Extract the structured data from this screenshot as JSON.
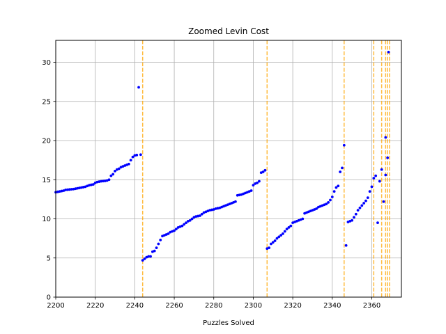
{
  "chart_data": {
    "type": "scatter",
    "title": "Zoomed Levin Cost",
    "xlabel": "Puzzles Solved",
    "ylabel": "",
    "xlim": [
      2200,
      2375
    ],
    "ylim": [
      0,
      32.8
    ],
    "xticks": [
      2200,
      2220,
      2240,
      2260,
      2280,
      2300,
      2320,
      2340,
      2360
    ],
    "yticks": [
      0,
      5,
      10,
      15,
      20,
      25,
      30
    ],
    "grid": true,
    "colors": {
      "points": "#0000ff",
      "vlines": "#ffa500",
      "grid": "#b0b0b0"
    },
    "vlines": [
      2244,
      2307,
      2346,
      2361,
      2365,
      2367,
      2368,
      2369
    ],
    "series": [
      {
        "x": [
          2200,
          2201,
          2202,
          2203,
          2204,
          2205,
          2206,
          2207,
          2208,
          2209,
          2210,
          2211,
          2212,
          2213,
          2214,
          2215,
          2216,
          2217,
          2218,
          2219,
          2220,
          2221,
          2222,
          2223,
          2224,
          2225,
          2226,
          2227,
          2228,
          2229,
          2230,
          2231,
          2232,
          2233,
          2234,
          2235,
          2236,
          2237,
          2238,
          2239,
          2240,
          2241,
          2242,
          2243,
          2244,
          2245,
          2246,
          2247,
          2248,
          2249,
          2250,
          2251,
          2252,
          2253,
          2254,
          2255,
          2256,
          2257,
          2258,
          2259,
          2260,
          2261,
          2262,
          2263,
          2264,
          2265,
          2266,
          2267,
          2268,
          2269,
          2270,
          2271,
          2272,
          2273,
          2274,
          2275,
          2276,
          2277,
          2278,
          2279,
          2280,
          2281,
          2282,
          2283,
          2284,
          2285,
          2286,
          2287,
          2288,
          2289,
          2290,
          2291,
          2292,
          2293,
          2294,
          2295,
          2296,
          2297,
          2298,
          2299,
          2300,
          2301,
          2302,
          2303,
          2304,
          2305,
          2306,
          2307,
          2308,
          2309,
          2310,
          2311,
          2312,
          2313,
          2314,
          2315,
          2316,
          2317,
          2318,
          2319,
          2320,
          2321,
          2322,
          2323,
          2324,
          2325,
          2326,
          2327,
          2328,
          2329,
          2330,
          2331,
          2332,
          2333,
          2334,
          2335,
          2336,
          2337,
          2338,
          2339,
          2340,
          2341,
          2342,
          2343,
          2344,
          2345,
          2346,
          2347,
          2348,
          2349,
          2350,
          2351,
          2352,
          2353,
          2354,
          2355,
          2356,
          2357,
          2358,
          2359,
          2360,
          2361,
          2362,
          2363,
          2364,
          2365,
          2366,
          2367,
          2368
        ],
        "y": [
          13.4,
          13.45,
          13.5,
          13.55,
          13.6,
          13.7,
          13.72,
          13.75,
          13.78,
          13.8,
          13.85,
          13.9,
          13.95,
          14.0,
          14.05,
          14.1,
          14.2,
          14.3,
          14.35,
          14.4,
          14.6,
          14.7,
          14.75,
          14.8,
          14.82,
          14.85,
          14.9,
          15.0,
          15.5,
          15.7,
          16.1,
          16.3,
          16.4,
          16.6,
          16.7,
          16.8,
          16.9,
          17.0,
          17.5,
          17.9,
          18.1,
          18.15,
          26.8,
          18.2,
          4.7,
          4.9,
          5.1,
          5.2,
          5.2,
          5.8,
          5.9,
          6.3,
          6.8,
          7.3,
          7.8,
          7.9,
          8.0,
          8.1,
          8.3,
          8.4,
          8.5,
          8.7,
          8.9,
          9.0,
          9.1,
          9.3,
          9.5,
          9.7,
          9.8,
          10.0,
          10.2,
          10.3,
          10.35,
          10.4,
          10.6,
          10.8,
          10.9,
          11.0,
          11.1,
          11.15,
          11.2,
          11.3,
          11.35,
          11.4,
          11.5,
          11.6,
          11.7,
          11.8,
          11.9,
          12.0,
          12.1,
          12.2,
          13.0,
          13.05,
          13.1,
          13.2,
          13.3,
          13.4,
          13.5,
          13.6,
          14.3,
          14.5,
          14.6,
          14.8,
          15.9,
          16.0,
          16.2,
          6.2,
          6.3,
          6.8,
          7.0,
          7.2,
          7.5,
          7.7,
          7.9,
          8.1,
          8.4,
          8.7,
          8.9,
          9.1,
          9.5,
          9.6,
          9.7,
          9.8,
          9.9,
          10.0,
          10.7,
          10.8,
          10.9,
          11.0,
          11.1,
          11.2,
          11.3,
          11.5,
          11.6,
          11.7,
          11.8,
          11.9,
          12.1,
          12.4,
          12.8,
          13.5,
          14.0,
          14.2,
          16.0,
          16.5,
          19.4,
          6.6,
          9.6,
          9.7,
          9.8,
          10.2,
          10.6,
          11.1,
          11.4,
          11.7,
          12.0,
          12.3,
          12.7,
          13.5,
          14.1,
          15.2,
          15.5,
          9.5,
          14.8,
          16.3,
          12.2,
          15.6,
          17.8
        ]
      },
      {
        "x": [
          2367,
          2368.5
        ],
        "y": [
          20.4,
          31.3
        ]
      }
    ]
  }
}
